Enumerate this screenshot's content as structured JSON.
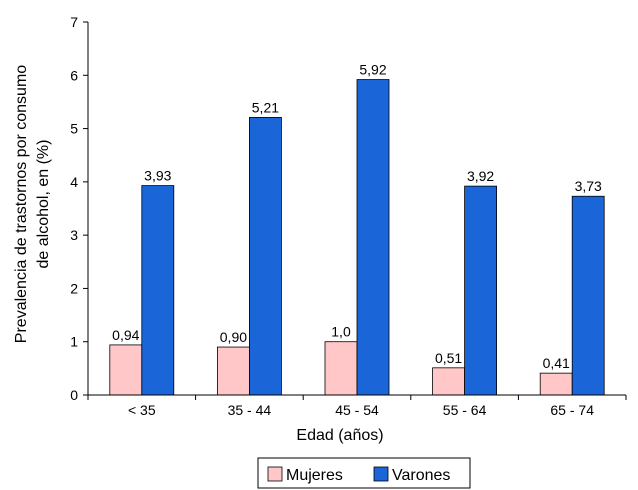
{
  "chart_data": {
    "type": "bar",
    "categories": [
      "< 35",
      "35 - 44",
      "45 - 54",
      "55 - 64",
      "65 - 74"
    ],
    "series": [
      {
        "name": "Mujeres",
        "values": [
          0.94,
          0.9,
          1.0,
          0.51,
          0.41
        ],
        "labels": [
          "0,94",
          "0,90",
          "1,0",
          "0,51",
          "0,41"
        ],
        "color": "#FFC7C7"
      },
      {
        "name": "Varones",
        "values": [
          3.93,
          5.21,
          5.92,
          3.92,
          3.73
        ],
        "labels": [
          "3,93",
          "5,21",
          "5,92",
          "3,92",
          "3,73"
        ],
        "color": "#1A66D8"
      }
    ],
    "ylim": [
      0,
      7
    ],
    "yticks": [
      "0",
      "1",
      "2",
      "3",
      "4",
      "5",
      "6",
      "7"
    ],
    "xlabel": "Edad (años)",
    "ylabel": [
      "Prevalencia de trastornos por consumo",
      "de alcohol, en (%)"
    ],
    "grid": false,
    "legend_position": "bottom"
  }
}
